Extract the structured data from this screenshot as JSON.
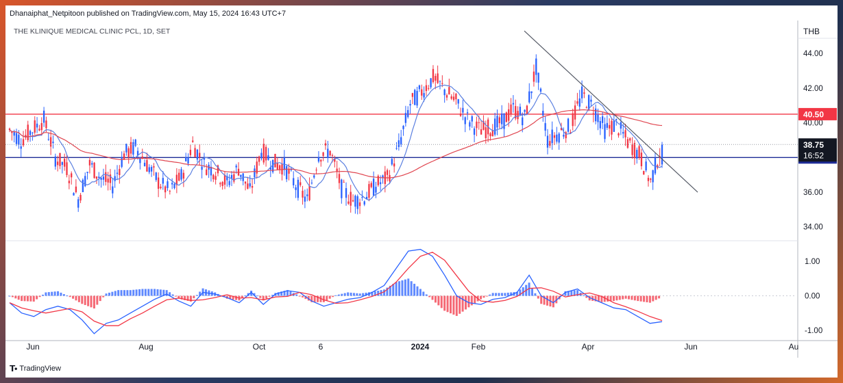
{
  "header": {
    "publisher": "Dhanaiphat_Netpitoon published on TradingView.com, May 15, 2024 16:43 UTC+7",
    "symbol": "THE KLINIQUE MEDICAL CLINIC PCL, 1D, SET"
  },
  "footer": {
    "brand": "TradingView",
    "logo_icon": "tradingview-logo-icon"
  },
  "chart_data": [
    {
      "type": "candlestick",
      "title": "THE KLINIQUE MEDICAL CLINIC PCL, 1D, SET",
      "currency": "THB",
      "y_axis_unit_label": "THB",
      "y_ticks": [
        "44.00",
        "42.00",
        "40.00",
        "38.00",
        "36.00",
        "34.00"
      ],
      "ylim": [
        33.2,
        45.9
      ],
      "x_ticks": [
        "Jun",
        "Aug",
        "Oct",
        "6",
        "2024",
        "Feb",
        "Apr",
        "Jun",
        "Au"
      ],
      "horizontal_levels": [
        {
          "label": "40.50",
          "value": 40.5,
          "color": "#f23645"
        },
        {
          "label": "38.00",
          "value": 38.0,
          "color": "#1e2b96"
        }
      ],
      "last_price": {
        "label": "38.75",
        "value": 38.75,
        "countdown": "16:52"
      },
      "trendline": {
        "start": {
          "date": "2024-02-12",
          "value": 45.3
        },
        "end": {
          "date": "2024-05-28",
          "value": 36.0
        }
      },
      "closes_weekly_approx": [
        39.6,
        39.0,
        39.6,
        40.2,
        38.0,
        37.4,
        35.6,
        37.6,
        36.8,
        36.4,
        38.2,
        38.6,
        37.6,
        36.6,
        36.0,
        36.9,
        38.8,
        37.6,
        37.2,
        36.5,
        37.4,
        36.0,
        38.4,
        37.7,
        37.5,
        36.4,
        35.5,
        38.2,
        38.4,
        36.2,
        35.5,
        35.7,
        36.4,
        36.8,
        38.6,
        41.1,
        41.8,
        42.6,
        41.9,
        41.2,
        40.2,
        39.6,
        39.7,
        40.0,
        40.8,
        40.3,
        43.2,
        39.0,
        39.4,
        39.8,
        41.6,
        40.9,
        39.6,
        39.9,
        38.9,
        38.2,
        36.6,
        38.75
      ],
      "ma_fast_color": "#5a7fe0",
      "ma_slow_color": "#e0454f",
      "up_color": "#2962ff",
      "down_color": "#f23645"
    },
    {
      "type": "macd",
      "y_ticks": [
        "1.00",
        "0.00",
        "-1.00"
      ],
      "ylim": [
        -1.3,
        1.6
      ],
      "macd_color": "#2962ff",
      "signal_color": "#f23645",
      "macd_weekly_approx": [
        -0.2,
        -0.5,
        -0.6,
        -0.4,
        -0.3,
        -0.4,
        -0.7,
        -1.1,
        -0.8,
        -0.7,
        -0.5,
        -0.3,
        -0.1,
        0.05,
        -0.15,
        -0.3,
        0.1,
        0.05,
        -0.05,
        -0.2,
        0.1,
        -0.25,
        0.05,
        0.15,
        0.1,
        -0.15,
        -0.3,
        -0.2,
        -0.1,
        -0.05,
        0.1,
        0.3,
        0.8,
        1.3,
        1.35,
        1.15,
        0.6,
        0.0,
        -0.2,
        -0.25,
        -0.1,
        -0.05,
        0.1,
        0.6,
        0.0,
        -0.2,
        0.1,
        0.2,
        -0.05,
        -0.2,
        -0.35,
        -0.4,
        -0.6,
        -0.8,
        -0.75
      ]
    }
  ]
}
